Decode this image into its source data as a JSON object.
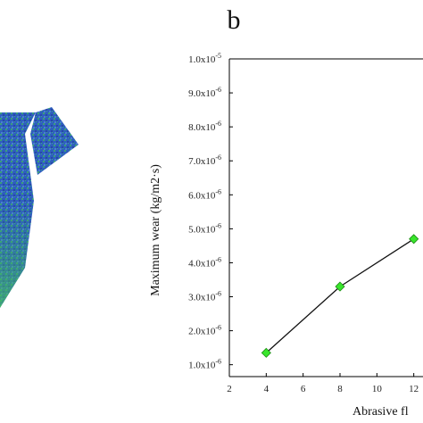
{
  "panel_label": "b",
  "colors": {
    "line": "#111111",
    "marker_fill": "#39e52c",
    "marker_stroke": "#1a8a12",
    "axis": "#000000",
    "mesh_blue": "#2d57b8",
    "mesh_green": "#2fa86a"
  },
  "chart_data": {
    "type": "line",
    "title": "",
    "xlabel": "Abrasive fl",
    "ylabel": "Maximum wear (kg/m2·s)",
    "x": [
      4,
      8,
      12
    ],
    "series": [
      {
        "values": [
          1.35e-06,
          3.3e-06,
          4.7e-06
        ]
      }
    ],
    "xticks": [
      "2",
      "4",
      "6",
      "8",
      "10",
      "12"
    ],
    "yticks": [
      {
        "mantissa": "1.0x10",
        "exp": "-6"
      },
      {
        "mantissa": "2.0x10",
        "exp": "-6"
      },
      {
        "mantissa": "3.0x10",
        "exp": "-6"
      },
      {
        "mantissa": "4.0x10",
        "exp": "-6"
      },
      {
        "mantissa": "5.0x10",
        "exp": "-6"
      },
      {
        "mantissa": "6.0x10",
        "exp": "-6"
      },
      {
        "mantissa": "7.0x10",
        "exp": "-6"
      },
      {
        "mantissa": "8.0x10",
        "exp": "-6"
      },
      {
        "mantissa": "9.0x10",
        "exp": "-6"
      },
      {
        "mantissa": "1.0x10",
        "exp": "-5"
      }
    ],
    "xlim": [
      2,
      12.5
    ],
    "ylim": [
      6.5e-07,
      1e-05
    ],
    "grid": false,
    "marker": "diamond"
  }
}
